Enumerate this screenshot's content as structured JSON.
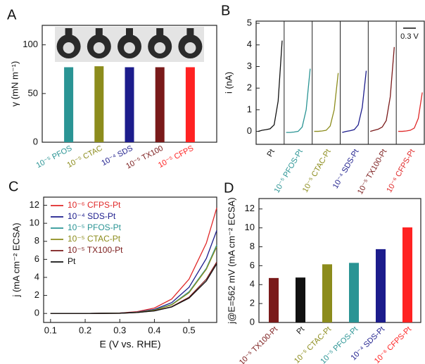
{
  "chart_data": [
    {
      "type": "bar",
      "panel": "A",
      "y_label": "γ (mN m⁻¹)",
      "categories": [
        "10⁻⁵ PFOS",
        "10⁻⁵ CTAC",
        "10⁻⁴ SDS",
        "10⁻⁵ TX100",
        "10⁻⁵ CFPS"
      ],
      "values": [
        77,
        78,
        77,
        77,
        77
      ],
      "colors": [
        "#2a9494",
        "#8c8c1c",
        "#1c1c8c",
        "#7a1a1a",
        "#ff2222"
      ],
      "ylim": [
        0,
        120
      ],
      "yticks": [
        0,
        50,
        100
      ]
    },
    {
      "type": "cv",
      "panel": "B",
      "y_label": "i (nA)",
      "scale_bar": "0.3 V",
      "x": [
        0,
        0.1,
        0.2,
        0.3,
        0.4,
        0.5,
        0.6
      ],
      "xlim": [
        -0.05,
        0.65
      ],
      "series": [
        {
          "name": "Pt",
          "color": "#111111",
          "values": [
            0,
            0.05,
            0.08,
            0.12,
            0.3,
            1.4,
            4.2
          ]
        },
        {
          "name": "10⁻⁵ PFOS-Pt",
          "color": "#2a9494",
          "values": [
            -0.05,
            -0.05,
            -0.03,
            0,
            0.2,
            1.0,
            2.9
          ]
        },
        {
          "name": "10⁻⁵ CTAC-Pt",
          "color": "#8c8c1c",
          "values": [
            0,
            0,
            0.02,
            0.05,
            0.25,
            1.0,
            2.7
          ]
        },
        {
          "name": "10⁻⁴ SDS-Pt",
          "color": "#1c1c8c",
          "values": [
            -0.05,
            0,
            0.03,
            0.08,
            0.3,
            1.1,
            2.8
          ]
        },
        {
          "name": "10⁻⁵ TX100-Pt",
          "color": "#7a1a1a",
          "values": [
            0,
            0.05,
            0.1,
            0.2,
            0.5,
            1.6,
            3.9
          ]
        },
        {
          "name": "10⁻⁶ CFPS-Pt",
          "color": "#e02828",
          "values": [
            0,
            0,
            0.02,
            0.05,
            0.15,
            0.6,
            1.8
          ]
        }
      ],
      "ylim": [
        -0.6,
        5.1
      ],
      "yticks": [
        0,
        1,
        2,
        3,
        4,
        5
      ]
    },
    {
      "type": "line",
      "panel": "C",
      "x_label": "E (V vs. RHE)",
      "y_label": "j (mA cm⁻² ECSA)",
      "x": [
        0.1,
        0.2,
        0.3,
        0.35,
        0.4,
        0.45,
        0.5,
        0.55,
        0.58
      ],
      "series": [
        {
          "name": "10⁻⁶ CFPS-Pt",
          "color": "#e02828",
          "values": [
            0,
            0,
            0.05,
            0.2,
            0.6,
            1.6,
            3.8,
            7.8,
            11.7
          ]
        },
        {
          "name": "10⁻⁴ SDS-Pt",
          "color": "#1c1c8c",
          "values": [
            0,
            0,
            0.04,
            0.15,
            0.45,
            1.2,
            2.9,
            6.1,
            9.2
          ]
        },
        {
          "name": "10⁻⁵ PFOS-Pt",
          "color": "#2a9494",
          "values": [
            0,
            0,
            0.03,
            0.12,
            0.38,
            1.0,
            2.4,
            5.0,
            7.6
          ]
        },
        {
          "name": "10⁻⁵ CTAC-Pt",
          "color": "#8c8c1c",
          "values": [
            0,
            0,
            0.03,
            0.12,
            0.36,
            0.95,
            2.3,
            4.9,
            7.4
          ]
        },
        {
          "name": "10⁻⁵ TX100-Pt",
          "color": "#7a1a1a",
          "values": [
            0,
            0,
            0.02,
            0.1,
            0.3,
            0.75,
            1.8,
            3.8,
            5.7
          ]
        },
        {
          "name": "Pt",
          "color": "#111111",
          "values": [
            0,
            0,
            0.02,
            0.1,
            0.28,
            0.72,
            1.7,
            3.6,
            5.5
          ]
        }
      ],
      "xlim": [
        0.08,
        0.58
      ],
      "xticks": [
        0.1,
        0.2,
        0.3,
        0.4,
        0.5
      ],
      "ylim": [
        -1,
        12.9
      ],
      "yticks": [
        0,
        2,
        4,
        6,
        8,
        10,
        12
      ]
    },
    {
      "type": "bar",
      "panel": "D",
      "y_label": "j@E=562 mV (mA cm⁻² ECSA)",
      "categories": [
        "10⁻⁵ TX100-Pt",
        "Pt",
        "10⁻⁵ CTAC-Pt",
        "10⁻⁵ PFOS-Pt",
        "10⁻⁴ SDS-Pt",
        "10⁻⁶ CFPS-Pt"
      ],
      "values": [
        4.7,
        4.75,
        6.15,
        6.3,
        7.75,
        10.05
      ],
      "colors": [
        "#7a1a1a",
        "#111111",
        "#8c8c1c",
        "#2a9494",
        "#1c1c8c",
        "#ff2222"
      ],
      "ylim": [
        0,
        13.1
      ],
      "yticks": [
        0,
        2,
        4,
        6,
        8,
        10,
        12
      ]
    }
  ]
}
